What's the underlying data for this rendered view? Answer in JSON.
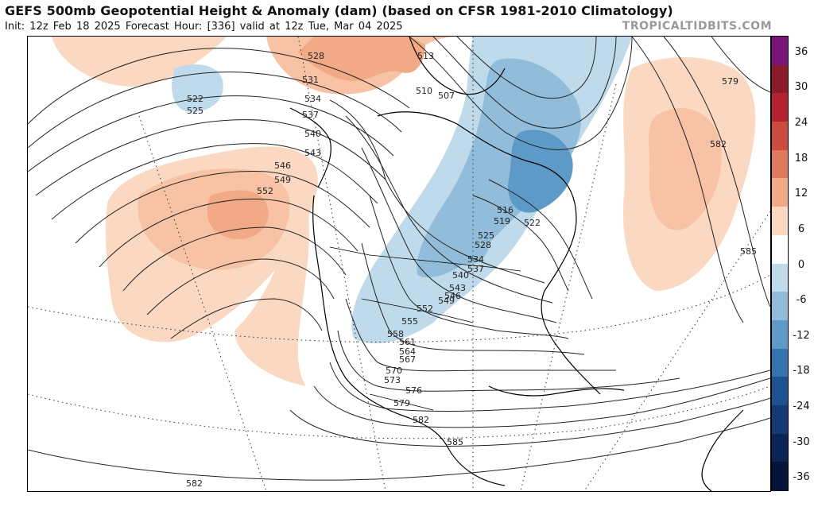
{
  "header": {
    "title": "GEFS 500mb Geopotential Height & Anomaly (dam) (based on CFSR 1981-2010 Climatology)",
    "subtitle": "Init: 12z Feb 18 2025   Forecast Hour: [336]   valid at 12z Tue, Mar 04 2025",
    "site": "TROPICALTIDBITS.COM"
  },
  "colorbar": {
    "ticks": [
      "36",
      "30",
      "24",
      "18",
      "12",
      "6",
      "0",
      "-6",
      "-12",
      "-18",
      "-24",
      "-30",
      "-36"
    ],
    "colors": [
      "#7b1478",
      "#8b1a2c",
      "#b3222e",
      "#cc4a3e",
      "#e07a5f",
      "#f2a986",
      "#fbd8c1",
      "#ffffff",
      "#bfdaea",
      "#91bdda",
      "#5e9ac8",
      "#3474ae",
      "#1e5190",
      "#133a74",
      "#0b2456",
      "#051438"
    ]
  },
  "contour_labels": [
    "528",
    "531",
    "534",
    "537",
    "540",
    "543",
    "546",
    "549",
    "552",
    "522",
    "525",
    "513",
    "510",
    "507",
    "516",
    "519",
    "522",
    "525",
    "528",
    "534",
    "537",
    "540",
    "543",
    "546",
    "549",
    "552",
    "555",
    "558",
    "561",
    "564",
    "567",
    "570",
    "573",
    "576",
    "579",
    "582",
    "585",
    "579",
    "582",
    "585",
    "582"
  ],
  "icons": {
    "map": "north-america-polar-stereographic-map",
    "colorbar": "anomaly-colorbar"
  }
}
